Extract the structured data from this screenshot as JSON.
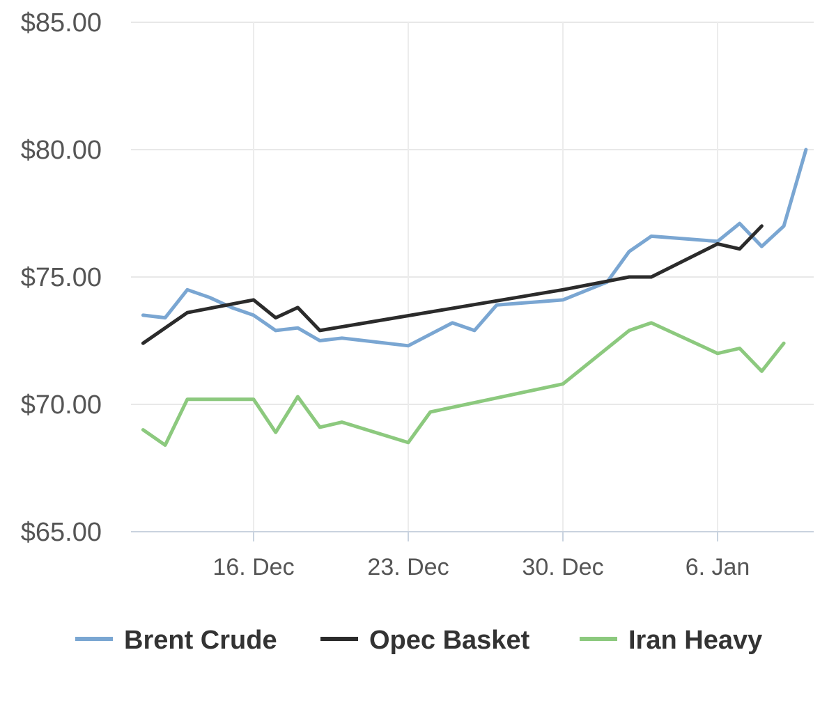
{
  "chart_data": {
    "type": "line",
    "title": "",
    "xlabel": "",
    "ylabel": "",
    "ylim": [
      65,
      85
    ],
    "yticks": [
      "$65.00",
      "$70.00",
      "$75.00",
      "$80.00",
      "$85.00"
    ],
    "ytick_values": [
      65,
      70,
      75,
      80,
      85
    ],
    "x_range": [
      "2023-12-11",
      "2024-01-09"
    ],
    "xticks": [
      {
        "label": "16. Dec",
        "date": "2023-12-16"
      },
      {
        "label": "23. Dec",
        "date": "2023-12-23"
      },
      {
        "label": "30. Dec",
        "date": "2023-12-30"
      },
      {
        "label": "6. Jan",
        "date": "2024-01-06"
      }
    ],
    "grid": true,
    "legend_position": "bottom",
    "series": [
      {
        "name": "Brent Crude",
        "color": "#7aa6d2",
        "points": [
          [
            "2023-12-11",
            73.5
          ],
          [
            "2023-12-12",
            73.4
          ],
          [
            "2023-12-13",
            74.5
          ],
          [
            "2023-12-14",
            74.2
          ],
          [
            "2023-12-15",
            73.8
          ],
          [
            "2023-12-16",
            73.5
          ],
          [
            "2023-12-17",
            72.9
          ],
          [
            "2023-12-18",
            73.0
          ],
          [
            "2023-12-19",
            72.5
          ],
          [
            "2023-12-20",
            72.6
          ],
          [
            "2023-12-23",
            72.3
          ],
          [
            "2023-12-25",
            73.2
          ],
          [
            "2023-12-26",
            72.9
          ],
          [
            "2023-12-27",
            73.9
          ],
          [
            "2023-12-30",
            74.1
          ],
          [
            "2024-01-01",
            74.8
          ],
          [
            "2024-01-02",
            76.0
          ],
          [
            "2024-01-03",
            76.6
          ],
          [
            "2024-01-06",
            76.4
          ],
          [
            "2024-01-07",
            77.1
          ],
          [
            "2024-01-08",
            76.2
          ],
          [
            "2024-01-09",
            77.0
          ],
          [
            "2024-01-10",
            80.0
          ]
        ]
      },
      {
        "name": "Opec Basket",
        "color": "#2b2b2b",
        "points": [
          [
            "2023-12-11",
            72.4
          ],
          [
            "2023-12-13",
            73.6
          ],
          [
            "2023-12-16",
            74.1
          ],
          [
            "2023-12-17",
            73.4
          ],
          [
            "2023-12-18",
            73.8
          ],
          [
            "2023-12-19",
            72.9
          ],
          [
            "2023-12-30",
            74.5
          ],
          [
            "2024-01-02",
            75.0
          ],
          [
            "2024-01-03",
            75.0
          ],
          [
            "2024-01-06",
            76.3
          ],
          [
            "2024-01-07",
            76.1
          ],
          [
            "2024-01-08",
            77.0
          ]
        ]
      },
      {
        "name": "Iran Heavy",
        "color": "#8cc97e",
        "points": [
          [
            "2023-12-11",
            69.0
          ],
          [
            "2023-12-12",
            68.4
          ],
          [
            "2023-12-13",
            70.2
          ],
          [
            "2023-12-16",
            70.2
          ],
          [
            "2023-12-17",
            68.9
          ],
          [
            "2023-12-18",
            70.3
          ],
          [
            "2023-12-19",
            69.1
          ],
          [
            "2023-12-20",
            69.3
          ],
          [
            "2023-12-23",
            68.5
          ],
          [
            "2023-12-24",
            69.7
          ],
          [
            "2023-12-30",
            70.8
          ],
          [
            "2024-01-02",
            72.9
          ],
          [
            "2024-01-03",
            73.2
          ],
          [
            "2024-01-06",
            72.0
          ],
          [
            "2024-01-07",
            72.2
          ],
          [
            "2024-01-08",
            71.3
          ],
          [
            "2024-01-09",
            72.4
          ]
        ]
      }
    ]
  }
}
